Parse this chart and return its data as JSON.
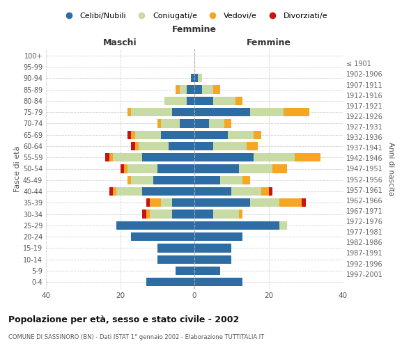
{
  "age_groups": [
    "0-4",
    "5-9",
    "10-14",
    "15-19",
    "20-24",
    "25-29",
    "30-34",
    "35-39",
    "40-44",
    "45-49",
    "50-54",
    "55-59",
    "60-64",
    "65-69",
    "70-74",
    "75-79",
    "80-84",
    "85-89",
    "90-94",
    "95-99",
    "100+"
  ],
  "birth_years": [
    "1997-2001",
    "1992-1996",
    "1987-1991",
    "1982-1986",
    "1977-1981",
    "1972-1976",
    "1967-1971",
    "1962-1966",
    "1957-1961",
    "1952-1956",
    "1947-1951",
    "1942-1946",
    "1937-1941",
    "1932-1936",
    "1927-1931",
    "1922-1926",
    "1917-1921",
    "1912-1916",
    "1907-1911",
    "1902-1906",
    "≤ 1901"
  ],
  "maschi": {
    "celibi": [
      13,
      5,
      10,
      10,
      17,
      21,
      6,
      6,
      14,
      11,
      10,
      14,
      7,
      9,
      4,
      6,
      2,
      2,
      1,
      0,
      0
    ],
    "coniugati": [
      0,
      0,
      0,
      0,
      0,
      0,
      6,
      3,
      7,
      6,
      8,
      8,
      8,
      7,
      5,
      11,
      6,
      2,
      0,
      0,
      0
    ],
    "vedovi": [
      0,
      0,
      0,
      0,
      0,
      0,
      1,
      3,
      1,
      1,
      1,
      1,
      1,
      1,
      1,
      1,
      0,
      1,
      0,
      0,
      0
    ],
    "divorziati": [
      0,
      0,
      0,
      0,
      0,
      0,
      1,
      1,
      1,
      0,
      1,
      1,
      1,
      1,
      0,
      0,
      0,
      0,
      0,
      0,
      0
    ]
  },
  "femmine": {
    "nubili": [
      13,
      7,
      10,
      10,
      13,
      23,
      5,
      15,
      10,
      7,
      12,
      16,
      5,
      9,
      4,
      15,
      5,
      2,
      1,
      0,
      0
    ],
    "coniugate": [
      0,
      0,
      0,
      0,
      0,
      2,
      7,
      8,
      8,
      6,
      9,
      11,
      9,
      7,
      4,
      9,
      6,
      3,
      1,
      0,
      0
    ],
    "vedove": [
      0,
      0,
      0,
      0,
      0,
      0,
      1,
      6,
      2,
      2,
      4,
      7,
      3,
      2,
      2,
      7,
      2,
      2,
      0,
      0,
      0
    ],
    "divorziate": [
      0,
      0,
      0,
      0,
      0,
      0,
      0,
      1,
      1,
      0,
      0,
      0,
      0,
      0,
      0,
      0,
      0,
      0,
      0,
      0,
      0
    ]
  },
  "colors": {
    "celibi": "#2e6da4",
    "coniugati": "#c8dba4",
    "vedovi": "#f5a623",
    "divorziati": "#cc1111"
  },
  "title": "Popolazione per età, sesso e stato civile - 2002",
  "subtitle": "COMUNE DI SASSINORO (BN) - Dati ISTAT 1° gennaio 2002 - Elaborazione TUTTITALIA.IT",
  "xlabel_left": "Maschi",
  "xlabel_right": "Femmine",
  "ylabel_left": "Fasce di età",
  "ylabel_right": "Anni di nascita",
  "xlim": 40,
  "legend_labels": [
    "Celibi/Nubili",
    "Coniugati/e",
    "Vedovi/e",
    "Divorziati/e"
  ],
  "bg_color": "#ffffff",
  "grid_color": "#cccccc"
}
